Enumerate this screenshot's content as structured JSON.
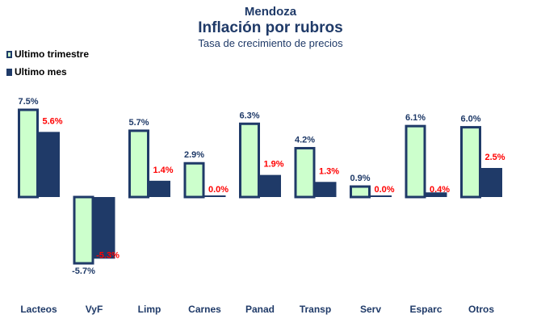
{
  "chart_data": {
    "type": "bar",
    "title": "Inflación por rubros",
    "supertitle": "Mendoza",
    "subtitle": "Tasa de crecimiento  de precios",
    "categories": [
      "Lacteos",
      "VyF",
      "Limp",
      "Carnes",
      "Panad",
      "Transp",
      "Serv",
      "Esparc",
      "Otros"
    ],
    "series": [
      {
        "name": "Ultimo trimestre",
        "values": [
          7.5,
          -5.7,
          5.7,
          2.9,
          6.3,
          4.2,
          0.9,
          6.1,
          6.0
        ],
        "labels": [
          "7.5%",
          "-5.7%",
          "5.7%",
          "2.9%",
          "6.3%",
          "4.2%",
          "0.9%",
          "6.1%",
          "6.0%"
        ],
        "fill": "#ccffcc",
        "stroke": "#1f3a68",
        "label_color": "#1f3a68"
      },
      {
        "name": "Ultimo mes",
        "values": [
          5.6,
          -5.3,
          1.4,
          0.0,
          1.9,
          1.3,
          0.0,
          0.4,
          2.5
        ],
        "labels": [
          "5.6%",
          "-5.3%",
          "1.4%",
          "0.0%",
          "1.9%",
          "1.3%",
          "0.0%",
          "0.4%",
          "2.5%"
        ],
        "fill": "#1f3a68",
        "label_color": "#ff0000"
      }
    ],
    "ylim": [
      -6.5,
      8
    ],
    "legend_position": "top-left",
    "grid": false
  }
}
